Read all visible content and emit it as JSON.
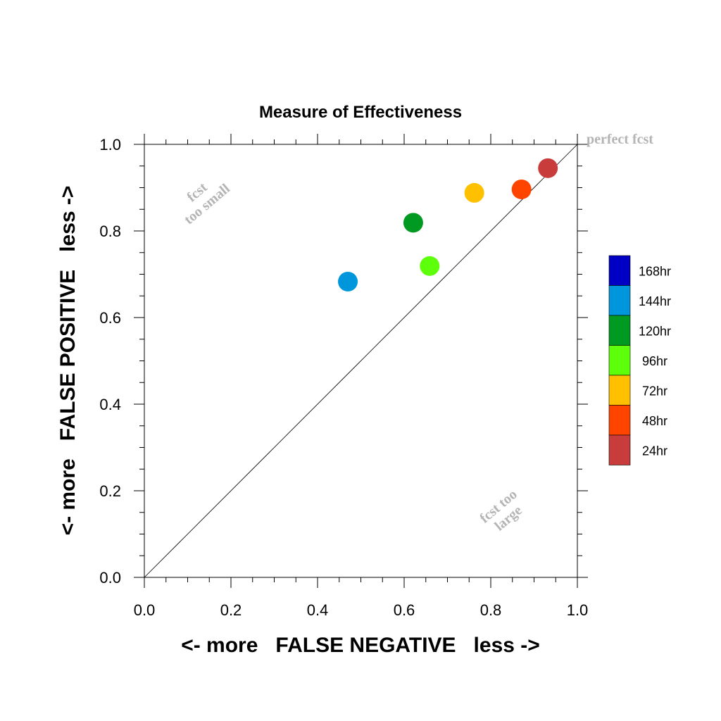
{
  "chart_data": {
    "type": "scatter",
    "title": "Measure of Effectiveness",
    "xlabel": "<- more   FALSE NEGATIVE   less ->",
    "ylabel": "<- more   FALSE POSITIVE   less ->",
    "xlim": [
      0.0,
      1.0
    ],
    "ylim": [
      0.0,
      1.0
    ],
    "x_ticks": [
      "0.0",
      "0.2",
      "0.4",
      "0.6",
      "0.8",
      "1.0"
    ],
    "y_ticks": [
      "0.0",
      "0.2",
      "0.4",
      "0.6",
      "0.8",
      "1.0"
    ],
    "grid": false,
    "reference_line": "diagonal y = x",
    "annotations": {
      "top_left": [
        "fcst",
        "too small"
      ],
      "bottom_right": [
        "fcst too",
        "large"
      ],
      "corner": "perfect fcst"
    },
    "legend_position": "right",
    "legend": [
      {
        "label": "168hr",
        "color": "#0000c4"
      },
      {
        "label": "144hr",
        "color": "#0096db"
      },
      {
        "label": "120hr",
        "color": "#009922"
      },
      {
        "label": "96hr",
        "color": "#5eff0a"
      },
      {
        "label": "72hr",
        "color": "#ffc000"
      },
      {
        "label": "48hr",
        "color": "#ff4400"
      },
      {
        "label": "24hr",
        "color": "#c83c3c"
      }
    ],
    "points": [
      {
        "series": "144hr",
        "x": 0.47,
        "y": 0.683,
        "color": "#0096db"
      },
      {
        "series": "120hr",
        "x": 0.621,
        "y": 0.819,
        "color": "#009922"
      },
      {
        "series": "96hr",
        "x": 0.659,
        "y": 0.719,
        "color": "#5eff0a"
      },
      {
        "series": "72hr",
        "x": 0.762,
        "y": 0.888,
        "color": "#ffc000"
      },
      {
        "series": "48hr",
        "x": 0.871,
        "y": 0.896,
        "color": "#ff4400"
      },
      {
        "series": "24hr",
        "x": 0.932,
        "y": 0.945,
        "color": "#c83c3c"
      }
    ]
  }
}
